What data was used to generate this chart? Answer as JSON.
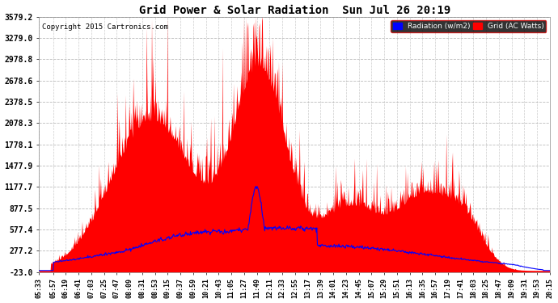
{
  "title": "Grid Power & Solar Radiation  Sun Jul 26 20:19",
  "copyright": "Copyright 2015 Cartronics.com",
  "legend_radiation": "Radiation (w/m2)",
  "legend_grid": "Grid (AC Watts)",
  "yticks": [
    3579.2,
    3279.0,
    2978.8,
    2678.6,
    2378.5,
    2078.3,
    1778.1,
    1477.9,
    1177.7,
    877.5,
    577.4,
    277.2,
    -23.0
  ],
  "ymin": -23.0,
  "ymax": 3579.2,
  "bg_color": "#ffffff",
  "plot_bg_color": "#ffffff",
  "grid_color": "#aaaaaa",
  "radiation_color": "#ff0000",
  "grid_line_color": "#0000ff",
  "title_color": "#000000",
  "xtick_labels": [
    "05:33",
    "05:57",
    "06:19",
    "06:41",
    "07:03",
    "07:25",
    "07:47",
    "08:09",
    "08:31",
    "08:53",
    "09:15",
    "09:37",
    "09:59",
    "10:21",
    "10:43",
    "11:05",
    "11:27",
    "11:49",
    "12:11",
    "12:33",
    "12:55",
    "13:17",
    "13:39",
    "14:01",
    "14:23",
    "14:45",
    "15:07",
    "15:29",
    "15:51",
    "16:13",
    "16:35",
    "16:57",
    "17:19",
    "17:41",
    "18:03",
    "18:25",
    "18:47",
    "19:09",
    "19:31",
    "19:53",
    "20:15"
  ]
}
